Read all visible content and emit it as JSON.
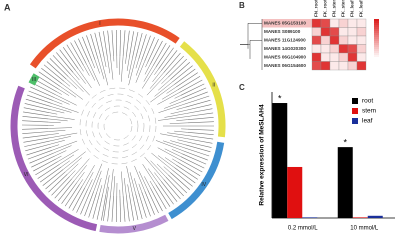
{
  "panels": {
    "a": "A",
    "b": "B",
    "c": "C"
  },
  "tree_a": {
    "clades": [
      {
        "label": "I",
        "color": "#e8502a",
        "start": -55,
        "end": 35
      },
      {
        "label": "II",
        "color": "#e5e04a",
        "start": 38,
        "end": 96
      },
      {
        "label": "IV",
        "color": "#3e8fd0",
        "start": 99,
        "end": 150
      },
      {
        "label": "V",
        "color": "#b58ed0",
        "start": 152,
        "end": 190
      },
      {
        "label": "VI",
        "color": "#9c5bb5",
        "start": 192,
        "end": 292
      },
      {
        "label": "III",
        "color": "#4fbf6a",
        "start": -64,
        "end": -58
      }
    ]
  },
  "heatmap_b": {
    "columns": [
      "FN_root",
      "FK_root",
      "FN_stem",
      "FK_stem",
      "FN_leaf",
      "FK_leaf"
    ],
    "rows": [
      "MANES 05G153100",
      "MANES S089100",
      "MANES 11G124900",
      "MANES 14G020300",
      "MANES 06G104900",
      "MANES 06G154600"
    ],
    "values": [
      [
        0.9,
        0.8,
        0.1,
        0.2,
        0.1,
        0.1
      ],
      [
        0.2,
        0.9,
        0.8,
        0.1,
        0.1,
        0.2
      ],
      [
        0.8,
        0.2,
        0.9,
        0.2,
        0.1,
        0.1
      ],
      [
        0.1,
        0.1,
        0.2,
        0.9,
        0.8,
        0.2
      ],
      [
        0.9,
        0.1,
        0.1,
        0.2,
        0.9,
        0.1
      ],
      [
        0.8,
        0.9,
        0.1,
        0.1,
        0.2,
        0.9
      ]
    ],
    "clim": [
      0,
      1
    ]
  },
  "chart_data": {
    "type": "bar",
    "ylabel": "Relative expression of MeSLAH4",
    "categories": [
      "0.2 mmol/L",
      "10 mmol/L"
    ],
    "series": [
      {
        "name": "root",
        "color": "#000000",
        "values": [
          365,
          225
        ]
      },
      {
        "name": "stem",
        "color": "#e01010",
        "values": [
          162,
          2
        ]
      },
      {
        "name": "leaf",
        "color": "#1a2f9a",
        "values": [
          2,
          7
        ]
      }
    ],
    "ylim": [
      0,
      400
    ],
    "annotations": [
      "*",
      "*"
    ]
  }
}
